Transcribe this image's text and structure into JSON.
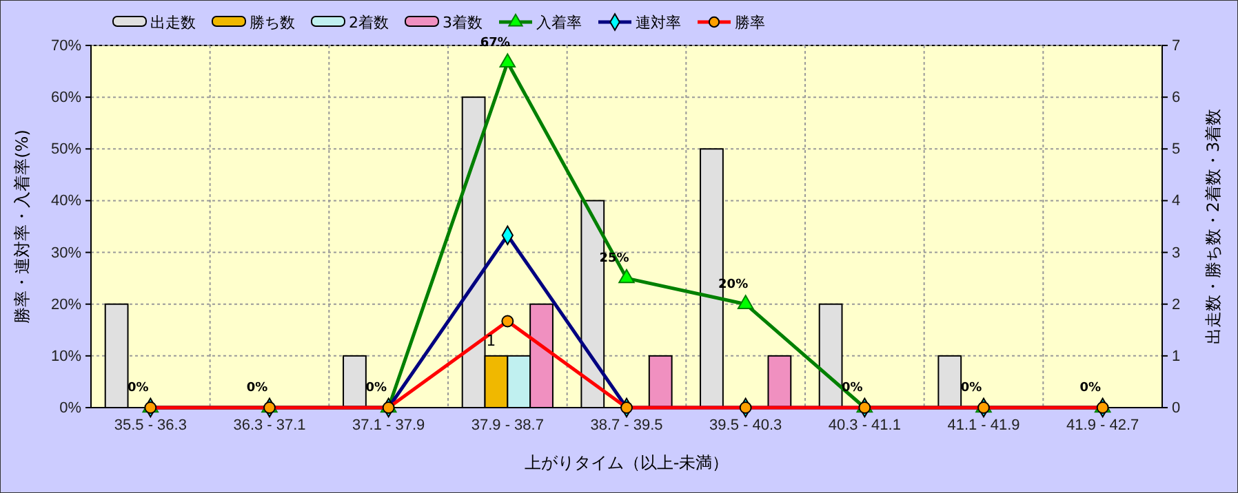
{
  "chart_data": {
    "type": "bar",
    "xlabel": "上がりタイム（以上-未満）",
    "ylabel": "勝率・連対率・入着率(%)",
    "y2label": "出走数・勝ち数・2着数・3着数",
    "categories": [
      "35.5 - 36.3",
      "36.3 - 37.1",
      "37.1 - 37.9",
      "37.9 - 38.7",
      "38.7 - 39.5",
      "39.5 - 40.3",
      "40.3 - 41.1",
      "41.1 - 41.9",
      "41.9 - 42.7"
    ],
    "series": [
      {
        "name": "出走数",
        "axis": "y2",
        "color": "#e0e0e0",
        "values": [
          2,
          0,
          1,
          6,
          4,
          5,
          2,
          1,
          0
        ]
      },
      {
        "name": "勝ち数",
        "axis": "y2",
        "color": "#f0b800",
        "values": [
          0,
          0,
          0,
          1,
          0,
          0,
          0,
          0,
          0
        ]
      },
      {
        "name": "2着数",
        "axis": "y2",
        "color": "#c0f0f0",
        "values": [
          0,
          0,
          0,
          1,
          0,
          0,
          0,
          0,
          0
        ]
      },
      {
        "name": "3着数",
        "axis": "y2",
        "color": "#f090c0",
        "values": [
          0,
          0,
          0,
          2,
          1,
          1,
          0,
          0,
          0
        ]
      },
      {
        "name": "入着率",
        "type": "line",
        "marker": "triangle",
        "color": "#008000",
        "values": [
          0,
          0,
          0,
          66.7,
          25,
          20,
          0,
          0,
          0
        ],
        "value_labels": [
          "0%",
          "0%",
          "0%",
          "67%",
          "25%",
          "20%",
          "0%",
          "0%",
          "0%"
        ]
      },
      {
        "name": "連対率",
        "type": "line",
        "marker": "diamond",
        "color": "#000080",
        "values": [
          0,
          0,
          0,
          33.3,
          0,
          0,
          0,
          0,
          0
        ]
      },
      {
        "name": "勝率",
        "type": "line",
        "marker": "circle",
        "color": "#ff0000",
        "values": [
          0,
          0,
          0,
          16.7,
          0,
          0,
          0,
          0,
          0
        ]
      }
    ],
    "ylim": [
      0,
      70
    ],
    "yticks": [
      {
        "value": 0,
        "label": "0%"
      },
      {
        "value": 10,
        "label": "10%"
      },
      {
        "value": 20,
        "label": "20%"
      },
      {
        "value": 30,
        "label": "30%"
      },
      {
        "value": 40,
        "label": "40%"
      },
      {
        "value": 50,
        "label": "50%"
      },
      {
        "value": 60,
        "label": "60%"
      },
      {
        "value": 70,
        "label": "70%"
      }
    ],
    "y2lim": [
      0,
      7
    ],
    "y2ticks": [
      0,
      1,
      2,
      3,
      4,
      5,
      6,
      7
    ],
    "grid": true,
    "legend": "top left",
    "annotations": [
      "1"
    ]
  }
}
